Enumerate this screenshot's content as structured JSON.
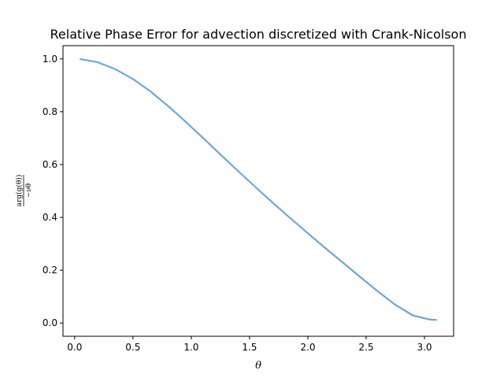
{
  "chart_data": {
    "type": "line",
    "title": "Relative Phase Error for advection discretized with Crank-Nicolson",
    "xlabel": "θ",
    "ylabel_num": "arg(g(θ))",
    "ylabel_den": "−νθ",
    "xlim": [
      -0.1,
      3.25
    ],
    "ylim": [
      -0.05,
      1.05
    ],
    "xticks": [
      0.0,
      0.5,
      1.0,
      1.5,
      2.0,
      2.5,
      3.0
    ],
    "yticks": [
      0.0,
      0.2,
      0.4,
      0.6,
      0.8,
      1.0
    ],
    "grid": false,
    "series": [
      {
        "color": "#6fa8d3",
        "x": [
          0.05,
          0.2,
          0.35,
          0.5,
          0.65,
          0.8,
          0.95,
          1.1,
          1.25,
          1.4,
          1.55,
          1.7,
          1.85,
          2.0,
          2.15,
          2.3,
          2.45,
          2.6,
          2.75,
          2.9,
          3.05,
          3.1
        ],
        "y": [
          0.999,
          0.987,
          0.961,
          0.924,
          0.877,
          0.822,
          0.763,
          0.701,
          0.638,
          0.576,
          0.515,
          0.455,
          0.397,
          0.34,
          0.284,
          0.229,
          0.174,
          0.12,
          0.069,
          0.029,
          0.013,
          0.012
        ]
      }
    ]
  }
}
